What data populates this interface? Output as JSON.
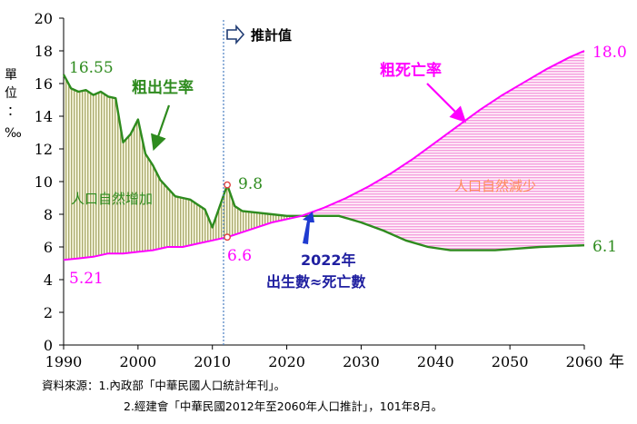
{
  "chart_data": {
    "type": "line",
    "xlim": [
      1990,
      2060
    ],
    "ylim": [
      0,
      20
    ],
    "x_ticks": [
      "1990",
      "2000",
      "2010",
      "2020",
      "2030",
      "2040",
      "2050",
      "2060"
    ],
    "y_ticks": [
      "0",
      "2",
      "4",
      "6",
      "8",
      "10",
      "12",
      "14",
      "16",
      "18",
      "20"
    ],
    "xlabel": "年",
    "ylabel": "單位：‰",
    "projection_label": "推計值",
    "projection_start": 2011.5,
    "series": [
      {
        "name": "粗出生率",
        "color": "#2e8b1e",
        "points": [
          [
            1990,
            16.55
          ],
          [
            1991,
            15.7
          ],
          [
            1992,
            15.5
          ],
          [
            1993,
            15.6
          ],
          [
            1994,
            15.3
          ],
          [
            1995,
            15.5
          ],
          [
            1996,
            15.2
          ],
          [
            1997,
            15.1
          ],
          [
            1998,
            12.4
          ],
          [
            1999,
            12.9
          ],
          [
            2000,
            13.8
          ],
          [
            2001,
            11.7
          ],
          [
            2002,
            11.0
          ],
          [
            2003,
            10.1
          ],
          [
            2004,
            9.6
          ],
          [
            2005,
            9.1
          ],
          [
            2006,
            9.0
          ],
          [
            2007,
            8.9
          ],
          [
            2008,
            8.6
          ],
          [
            2009,
            8.3
          ],
          [
            2010,
            7.2
          ],
          [
            2011,
            8.5
          ],
          [
            2012,
            9.8
          ],
          [
            2013,
            8.5
          ],
          [
            2014,
            8.2
          ],
          [
            2016,
            8.1
          ],
          [
            2018,
            8.0
          ],
          [
            2020,
            7.9
          ],
          [
            2022,
            7.9
          ],
          [
            2024,
            7.9
          ],
          [
            2027,
            7.9
          ],
          [
            2030,
            7.5
          ],
          [
            2033,
            7.0
          ],
          [
            2036,
            6.4
          ],
          [
            2039,
            6.0
          ],
          [
            2042,
            5.8
          ],
          [
            2045,
            5.8
          ],
          [
            2048,
            5.8
          ],
          [
            2051,
            5.9
          ],
          [
            2054,
            6.0
          ],
          [
            2057,
            6.05
          ],
          [
            2060,
            6.1
          ]
        ]
      },
      {
        "name": "粗死亡率",
        "color": "#ff00ff",
        "points": [
          [
            1990,
            5.21
          ],
          [
            1992,
            5.3
          ],
          [
            1994,
            5.4
          ],
          [
            1996,
            5.6
          ],
          [
            1998,
            5.6
          ],
          [
            2000,
            5.7
          ],
          [
            2002,
            5.8
          ],
          [
            2004,
            6.0
          ],
          [
            2006,
            6.0
          ],
          [
            2008,
            6.2
          ],
          [
            2010,
            6.4
          ],
          [
            2012,
            6.6
          ],
          [
            2014,
            6.9
          ],
          [
            2016,
            7.2
          ],
          [
            2018,
            7.5
          ],
          [
            2020,
            7.7
          ],
          [
            2022,
            7.9
          ],
          [
            2025,
            8.4
          ],
          [
            2028,
            9.0
          ],
          [
            2031,
            9.7
          ],
          [
            2034,
            10.5
          ],
          [
            2037,
            11.4
          ],
          [
            2040,
            12.4
          ],
          [
            2043,
            13.4
          ],
          [
            2046,
            14.4
          ],
          [
            2049,
            15.3
          ],
          [
            2052,
            16.1
          ],
          [
            2055,
            16.9
          ],
          [
            2058,
            17.6
          ],
          [
            2060,
            18.0
          ]
        ]
      }
    ],
    "annotations": {
      "birth_start": "16.55",
      "death_start": "5.21",
      "birth_2012": "9.8",
      "death_2012": "6.6",
      "birth_end": "6.1",
      "death_end": "18.0",
      "birth_series_label": "粗出生率",
      "death_series_label": "粗死亡率",
      "natural_increase": "人口自然增加",
      "natural_decrease": "人口自然減少",
      "crossover_year": "2022年",
      "crossover_text": "出生數≈死亡數"
    }
  },
  "source": {
    "line1": "資料來源：1.內政部「中華民國人口統計年刊」。",
    "line2": "2.經建會「中華民國2012年至2060年人口推計」，101年8月。"
  }
}
